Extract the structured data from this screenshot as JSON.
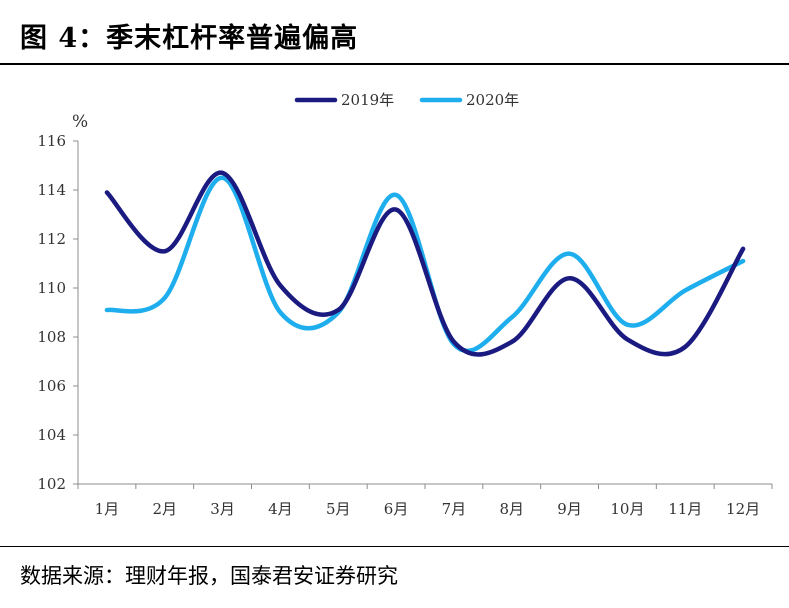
{
  "header": {
    "title": "图 4：季末杠杆率普遍偏高"
  },
  "footer": {
    "source": "数据来源：理财年报，国泰君安证券研究"
  },
  "chart_data": {
    "type": "line",
    "title": "季末杠杆率普遍偏高",
    "ylabel": "%",
    "categories": [
      "1月",
      "2月",
      "3月",
      "4月",
      "5月",
      "6月",
      "7月",
      "8月",
      "9月",
      "10月",
      "11月",
      "12月"
    ],
    "ylim": [
      102,
      116
    ],
    "yticks": [
      102,
      104,
      106,
      108,
      110,
      112,
      114,
      116
    ],
    "grid": false,
    "legend_position": "top-center",
    "series": [
      {
        "name": "2019年",
        "color": "#1a1a80",
        "values": [
          113.9,
          111.5,
          114.7,
          110.1,
          109.1,
          113.2,
          107.8,
          107.8,
          110.4,
          107.9,
          107.6,
          111.6
        ]
      },
      {
        "name": "2020年",
        "color": "#1eaeee",
        "values": [
          109.1,
          109.6,
          114.5,
          109.0,
          109.0,
          113.8,
          107.7,
          108.8,
          111.4,
          108.5,
          109.9,
          111.1
        ]
      }
    ]
  }
}
